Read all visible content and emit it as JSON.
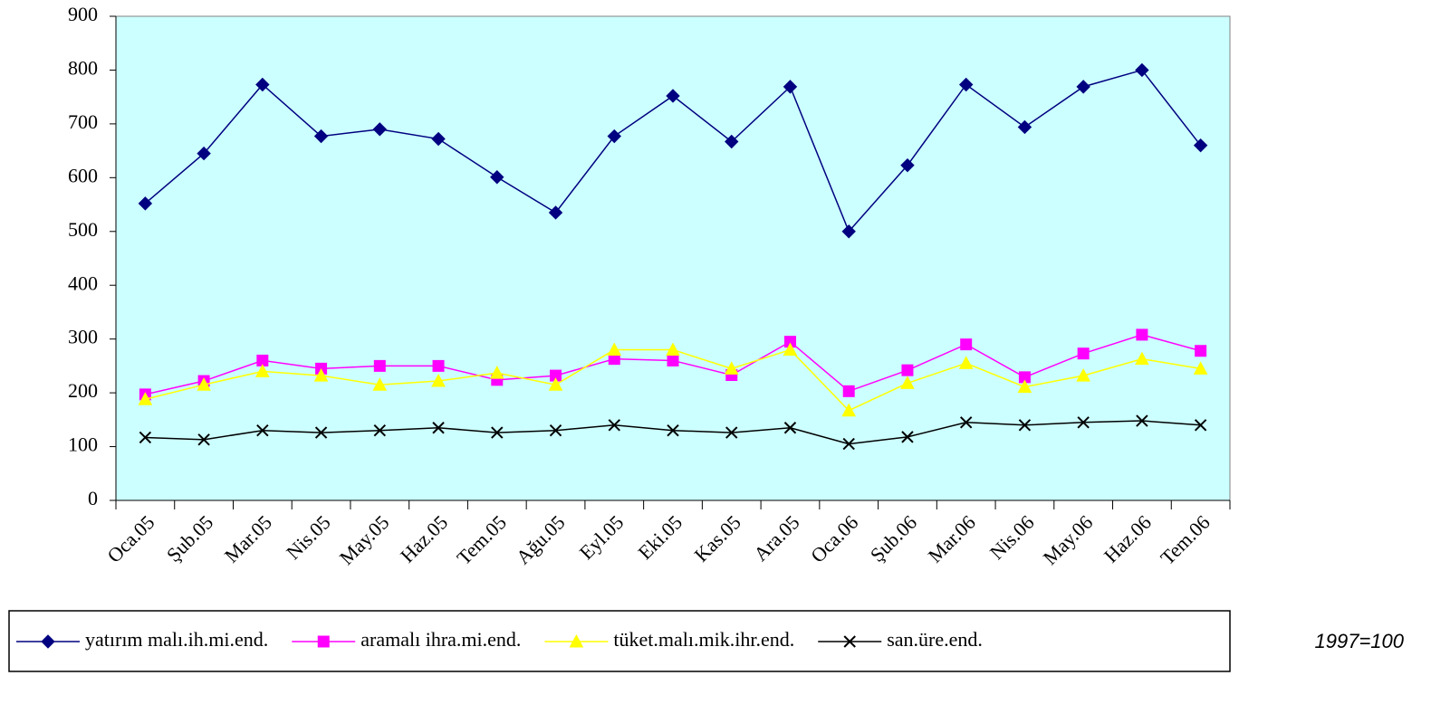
{
  "chart_data": {
    "type": "line",
    "categories": [
      "Oca.05",
      "Şub.05",
      "Mar.05",
      "Nis.05",
      "May.05",
      "Haz.05",
      "Tem.05",
      "Ağu.05",
      "Eyl.05",
      "Eki.05",
      "Kas.05",
      "Ara.05",
      "Oca.06",
      "Şub.06",
      "Mar.06",
      "Nis.06",
      "May.06",
      "Haz.06",
      "Tem.06"
    ],
    "series": [
      {
        "name": "yatırım malı.ih.mi.end.",
        "color": "#000080",
        "marker": "diamond",
        "values": [
          552,
          645,
          773,
          677,
          690,
          672,
          601,
          535,
          677,
          752,
          667,
          769,
          500,
          623,
          773,
          694,
          769,
          800,
          660
        ]
      },
      {
        "name": "aramalı ihra.mi.end.",
        "color": "#ff00ff",
        "marker": "square",
        "values": [
          197,
          222,
          260,
          245,
          250,
          250,
          224,
          232,
          263,
          260,
          233,
          295,
          203,
          242,
          290,
          229,
          273,
          308,
          278
        ]
      },
      {
        "name": "tüket.malı.mik.ihr.end.",
        "color": "#ffff00",
        "marker": "triangle",
        "values": [
          188,
          215,
          240,
          232,
          215,
          222,
          237,
          215,
          280,
          280,
          245,
          280,
          167,
          218,
          255,
          211,
          232,
          263,
          245
        ]
      },
      {
        "name": "san.üre.end.",
        "color": "#000000",
        "marker": "x",
        "values": [
          117,
          113,
          130,
          126,
          130,
          135,
          126,
          130,
          140,
          130,
          126,
          135,
          105,
          118,
          145,
          140,
          145,
          148,
          140
        ]
      }
    ],
    "ylim": [
      0,
      900
    ],
    "yticks": [
      0,
      100,
      200,
      300,
      400,
      500,
      600,
      700,
      800,
      900
    ],
    "background": "#ccffff",
    "annotation": "1997=100"
  }
}
